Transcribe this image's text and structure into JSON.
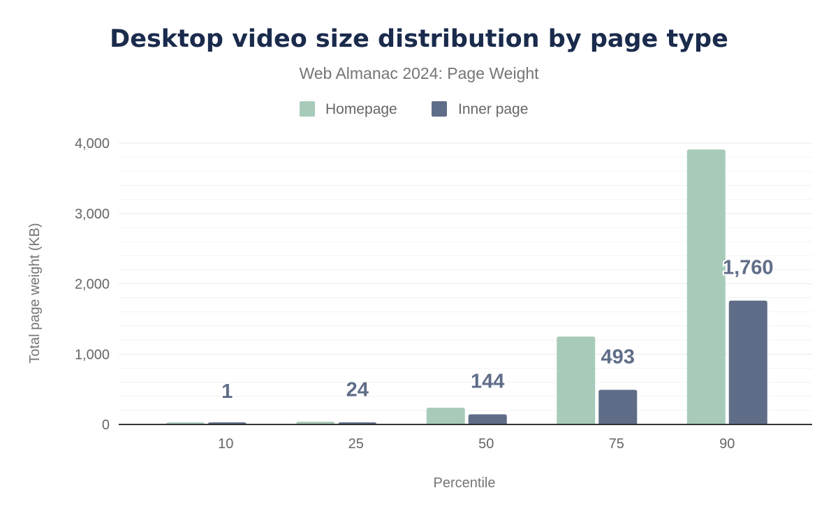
{
  "chart_data": {
    "type": "bar",
    "title": "Desktop video size distribution by page type",
    "subtitle": "Web Almanac 2024: Page Weight",
    "xlabel": "Percentile",
    "ylabel": "Total page weight (KB)",
    "categories": [
      "10",
      "25",
      "50",
      "75",
      "90"
    ],
    "series": [
      {
        "name": "Homepage",
        "color": "#a8cbb9",
        "values": [
          1,
          40,
          238,
          1250,
          3910
        ]
      },
      {
        "name": "Inner page",
        "color": "#5f6d88",
        "values": [
          1,
          24,
          144,
          493,
          1760
        ]
      }
    ],
    "data_labels": [
      "1",
      "24",
      "144",
      "493",
      "1,760"
    ],
    "ylim": [
      0,
      4000
    ],
    "yticks": [
      "0",
      "1,000",
      "2,000",
      "3,000",
      "4,000"
    ],
    "grid": true,
    "legend": "top-center"
  }
}
